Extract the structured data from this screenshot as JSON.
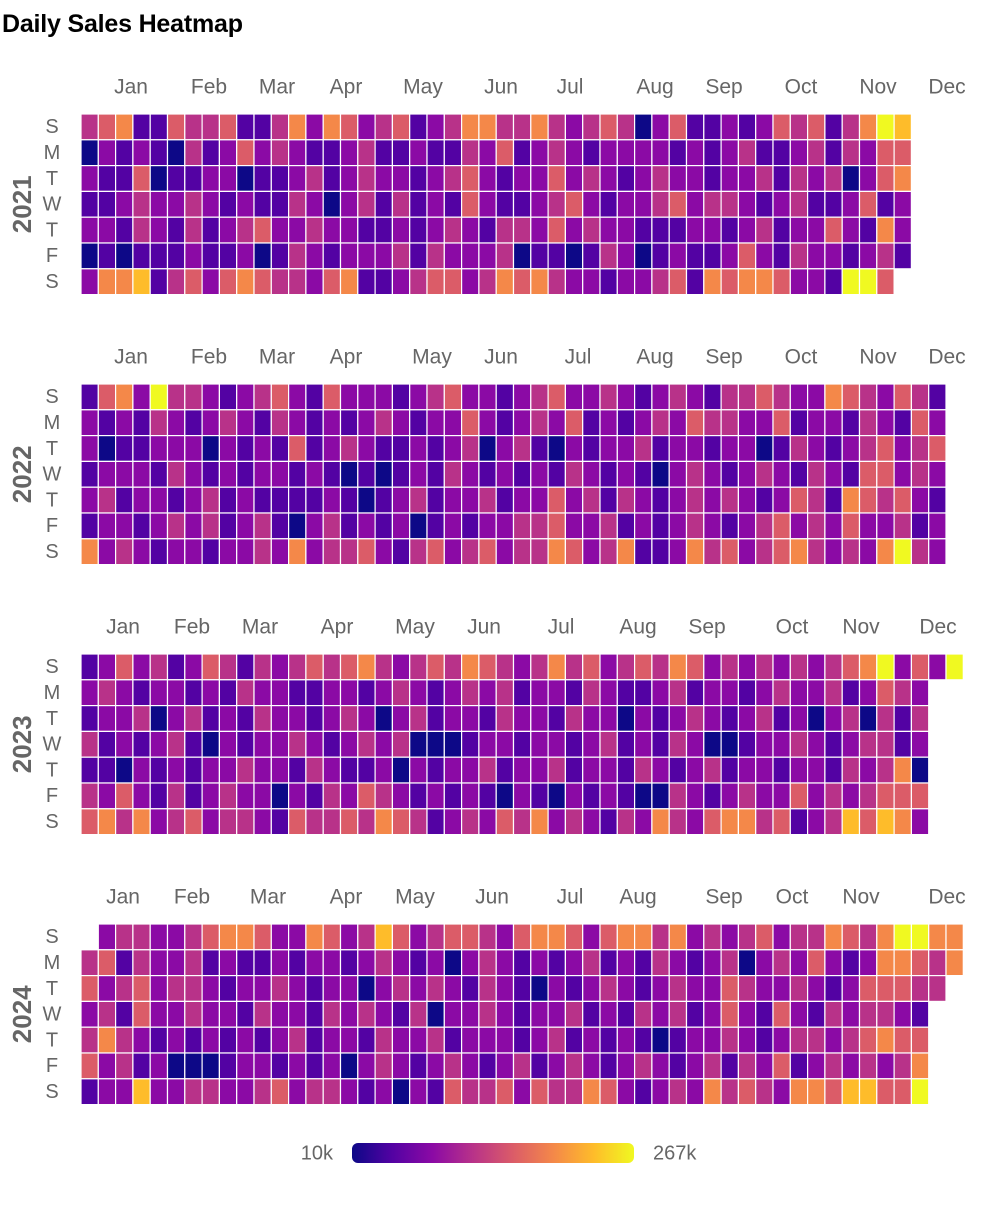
{
  "chart_data": {
    "type": "heatmap",
    "title": "Daily Sales Heatmap",
    "subtype": "calendar",
    "years": [
      2021,
      2022,
      2023,
      2024
    ],
    "months": [
      "Jan",
      "Feb",
      "Mar",
      "Apr",
      "May",
      "Jun",
      "Jul",
      "Aug",
      "Sep",
      "Oct",
      "Nov",
      "Dec"
    ],
    "weekday_labels": [
      "S",
      "M",
      "T",
      "W",
      "T",
      "F",
      "S"
    ],
    "colorscale": "plasma",
    "colorscale_stops": [
      "#0d0887",
      "#5302a3",
      "#8b0aa5",
      "#b83289",
      "#db5c68",
      "#f48849",
      "#febc2a",
      "#f0f921"
    ],
    "value_range": [
      10000,
      267000
    ],
    "legend": {
      "min_label": "10k",
      "max_label": "267k",
      "position": "bottom-center"
    },
    "daily_values_2023_december_weekly_sundays": [],
    "yearly_level_grids": {
      "2021": [
        [
          4,
          5,
          6,
          2,
          2,
          5,
          4,
          4,
          5,
          2,
          2,
          4,
          6,
          3,
          6,
          5,
          3,
          4,
          5,
          2,
          3,
          4,
          6,
          6,
          4,
          4,
          6,
          4,
          3,
          4,
          5,
          4,
          1,
          3,
          5,
          2,
          2,
          3,
          2,
          3,
          5,
          4,
          5,
          2,
          4,
          6,
          8,
          7
        ],
        [
          1,
          3,
          2,
          3,
          2,
          1,
          4,
          2,
          3,
          5,
          3,
          4,
          3,
          2,
          2,
          3,
          4,
          2,
          2,
          3,
          2,
          2,
          4,
          3,
          5,
          2,
          3,
          4,
          3,
          2,
          3,
          3,
          3,
          3,
          2,
          3,
          2,
          3,
          4,
          2,
          2,
          3,
          4,
          2,
          4,
          3,
          5,
          5
        ],
        [
          3,
          2,
          2,
          5,
          1,
          2,
          2,
          3,
          3,
          1,
          2,
          2,
          3,
          4,
          2,
          3,
          4,
          3,
          3,
          2,
          3,
          4,
          5,
          3,
          2,
          3,
          3,
          5,
          3,
          4,
          3,
          2,
          3,
          4,
          3,
          3,
          2,
          3,
          3,
          4,
          2,
          4,
          3,
          4,
          1,
          3,
          5,
          6
        ],
        [
          2,
          2,
          3,
          4,
          3,
          3,
          4,
          3,
          2,
          3,
          2,
          2,
          4,
          3,
          1,
          3,
          4,
          2,
          4,
          2,
          3,
          2,
          5,
          3,
          2,
          2,
          3,
          4,
          5,
          3,
          2,
          3,
          3,
          4,
          5,
          3,
          4,
          4,
          3,
          2,
          3,
          4,
          2,
          2,
          3,
          5,
          2,
          3
        ],
        [
          3,
          3,
          2,
          4,
          3,
          2,
          4,
          2,
          3,
          4,
          5,
          3,
          3,
          4,
          3,
          3,
          2,
          2,
          3,
          2,
          3,
          4,
          3,
          2,
          4,
          4,
          3,
          5,
          3,
          4,
          3,
          3,
          2,
          2,
          2,
          3,
          3,
          2,
          3,
          4,
          2,
          3,
          3,
          5,
          3,
          2,
          6,
          3
        ],
        [
          1,
          2,
          1,
          2,
          2,
          2,
          3,
          2,
          2,
          3,
          1,
          2,
          4,
          3,
          2,
          3,
          3,
          3,
          4,
          2,
          4,
          3,
          3,
          3,
          4,
          1,
          2,
          2,
          1,
          2,
          4,
          3,
          1,
          2,
          3,
          2,
          2,
          3,
          5,
          3,
          2,
          4,
          3,
          3,
          2,
          3,
          4,
          2
        ],
        [
          3,
          6,
          6,
          7,
          2,
          4,
          5,
          3,
          5,
          6,
          5,
          4,
          4,
          3,
          5,
          6,
          2,
          2,
          3,
          4,
          5,
          5,
          3,
          4,
          6,
          5,
          6,
          4,
          3,
          3,
          2,
          3,
          3,
          4,
          5,
          2,
          6,
          5,
          6,
          6,
          5,
          3,
          3,
          2,
          8,
          8,
          5,
          0
        ]
      ],
      "2022": [
        [
          2,
          5,
          6,
          3,
          8,
          4,
          4,
          3,
          2,
          3,
          4,
          5,
          3,
          2,
          5,
          3,
          3,
          3,
          2,
          3,
          4,
          5,
          3,
          3,
          2,
          3,
          4,
          5,
          3,
          3,
          4,
          3,
          2,
          3,
          4,
          3,
          2,
          4,
          4,
          5,
          4,
          3,
          3,
          6,
          5,
          4,
          3,
          5,
          4,
          2,
          0
        ],
        [
          3,
          2,
          3,
          2,
          4,
          3,
          2,
          3,
          4,
          3,
          2,
          4,
          3,
          2,
          3,
          2,
          3,
          4,
          3,
          2,
          3,
          3,
          5,
          3,
          2,
          3,
          4,
          3,
          5,
          2,
          3,
          2,
          3,
          4,
          3,
          5,
          4,
          4,
          3,
          3,
          5,
          2,
          3,
          3,
          2,
          4,
          3,
          2,
          5,
          3,
          0
        ],
        [
          3,
          1,
          2,
          2,
          3,
          3,
          3,
          1,
          3,
          2,
          3,
          2,
          5,
          2,
          3,
          4,
          3,
          2,
          2,
          3,
          2,
          3,
          4,
          1,
          3,
          4,
          2,
          1,
          3,
          2,
          3,
          3,
          4,
          2,
          3,
          3,
          2,
          3,
          3,
          1,
          2,
          4,
          3,
          2,
          3,
          4,
          5,
          3,
          4,
          5,
          0
        ],
        [
          2,
          3,
          3,
          3,
          2,
          4,
          3,
          2,
          3,
          2,
          3,
          3,
          2,
          3,
          2,
          1,
          2,
          1,
          2,
          3,
          2,
          4,
          3,
          2,
          3,
          2,
          3,
          2,
          4,
          3,
          2,
          3,
          2,
          1,
          3,
          4,
          3,
          2,
          3,
          4,
          3,
          2,
          4,
          3,
          2,
          5,
          5,
          3,
          4,
          3,
          0
        ],
        [
          3,
          4,
          2,
          3,
          3,
          2,
          3,
          4,
          2,
          3,
          2,
          2,
          2,
          2,
          3,
          2,
          1,
          2,
          3,
          4,
          2,
          3,
          3,
          4,
          2,
          3,
          3,
          5,
          3,
          4,
          2,
          4,
          3,
          2,
          3,
          4,
          3,
          4,
          3,
          2,
          3,
          5,
          4,
          2,
          6,
          5,
          4,
          5,
          3,
          2,
          0
        ],
        [
          2,
          3,
          3,
          2,
          3,
          4,
          3,
          4,
          2,
          3,
          4,
          2,
          1,
          3,
          4,
          2,
          3,
          2,
          3,
          1,
          2,
          3,
          2,
          3,
          3,
          4,
          4,
          5,
          3,
          3,
          4,
          2,
          3,
          2,
          3,
          4,
          3,
          2,
          3,
          4,
          5,
          3,
          4,
          3,
          5,
          3,
          3,
          4,
          2,
          3,
          0
        ],
        [
          6,
          3,
          4,
          3,
          2,
          3,
          3,
          2,
          3,
          3,
          4,
          3,
          6,
          3,
          4,
          4,
          5,
          3,
          2,
          4,
          5,
          3,
          4,
          5,
          3,
          4,
          4,
          6,
          5,
          3,
          4,
          6,
          2,
          2,
          3,
          6,
          4,
          5,
          3,
          4,
          5,
          6,
          4,
          3,
          4,
          3,
          6,
          8,
          4,
          3,
          0
        ]
      ],
      "2023": [
        [
          2,
          3,
          5,
          3,
          4,
          2,
          3,
          5,
          4,
          2,
          4,
          3,
          4,
          5,
          4,
          5,
          6,
          4,
          3,
          4,
          5,
          4,
          6,
          5,
          4,
          3,
          4,
          6,
          4,
          5,
          3,
          4,
          5,
          4,
          6,
          5,
          3,
          4,
          3,
          4,
          3,
          4,
          3,
          4,
          5,
          6,
          8,
          3,
          5,
          3,
          8
        ],
        [
          3,
          4,
          3,
          2,
          3,
          3,
          2,
          3,
          2,
          4,
          3,
          3,
          2,
          2,
          3,
          3,
          2,
          3,
          4,
          3,
          2,
          3,
          4,
          3,
          4,
          2,
          3,
          3,
          2,
          4,
          3,
          2,
          2,
          3,
          4,
          2,
          3,
          3,
          2,
          3,
          4,
          3,
          3,
          4,
          2,
          3,
          5,
          4,
          3,
          0,
          0
        ],
        [
          2,
          3,
          3,
          4,
          1,
          3,
          4,
          2,
          3,
          2,
          4,
          3,
          3,
          2,
          3,
          4,
          3,
          1,
          3,
          4,
          2,
          3,
          3,
          2,
          4,
          3,
          3,
          2,
          4,
          3,
          3,
          1,
          3,
          2,
          3,
          4,
          3,
          2,
          3,
          4,
          2,
          3,
          1,
          3,
          4,
          1,
          4,
          2,
          4,
          0,
          0
        ],
        [
          4,
          2,
          3,
          2,
          3,
          4,
          2,
          1,
          3,
          2,
          3,
          3,
          4,
          3,
          2,
          3,
          4,
          3,
          4,
          1,
          1,
          1,
          2,
          3,
          3,
          2,
          3,
          3,
          2,
          3,
          4,
          2,
          3,
          2,
          4,
          3,
          1,
          1,
          2,
          3,
          3,
          4,
          3,
          2,
          3,
          4,
          4,
          2,
          3,
          0,
          0
        ],
        [
          2,
          2,
          1,
          3,
          2,
          3,
          2,
          3,
          3,
          4,
          3,
          3,
          2,
          4,
          3,
          2,
          2,
          3,
          1,
          3,
          2,
          3,
          3,
          4,
          2,
          3,
          3,
          4,
          2,
          3,
          3,
          2,
          4,
          3,
          2,
          3,
          4,
          2,
          3,
          3,
          2,
          3,
          3,
          2,
          4,
          3,
          4,
          6,
          1,
          0,
          0
        ],
        [
          4,
          3,
          5,
          3,
          2,
          4,
          2,
          3,
          4,
          3,
          3,
          1,
          3,
          2,
          4,
          3,
          5,
          4,
          3,
          2,
          3,
          2,
          3,
          2,
          1,
          3,
          2,
          1,
          3,
          2,
          3,
          2,
          1,
          1,
          4,
          3,
          2,
          3,
          4,
          3,
          3,
          5,
          3,
          4,
          3,
          4,
          5,
          5,
          5,
          0,
          0
        ],
        [
          5,
          6,
          4,
          6,
          3,
          4,
          5,
          3,
          4,
          4,
          3,
          2,
          5,
          4,
          4,
          5,
          4,
          6,
          5,
          4,
          2,
          3,
          4,
          3,
          5,
          4,
          6,
          3,
          4,
          3,
          2,
          4,
          3,
          6,
          4,
          3,
          5,
          6,
          6,
          4,
          5,
          2,
          3,
          4,
          7,
          5,
          7,
          6,
          3,
          0,
          0
        ]
      ],
      "2024": [
        [
          0,
          3,
          4,
          4,
          3,
          3,
          4,
          5,
          6,
          6,
          5,
          3,
          3,
          6,
          5,
          3,
          4,
          7,
          5,
          3,
          4,
          5,
          5,
          4,
          3,
          5,
          6,
          6,
          5,
          3,
          5,
          6,
          6,
          4,
          6,
          3,
          4,
          3,
          4,
          5,
          3,
          4,
          4,
          6,
          5,
          4,
          6,
          8,
          8,
          6,
          6
        ],
        [
          4,
          5,
          2,
          4,
          3,
          3,
          4,
          2,
          3,
          2,
          2,
          3,
          2,
          3,
          3,
          2,
          3,
          4,
          3,
          2,
          3,
          1,
          3,
          4,
          3,
          2,
          3,
          2,
          3,
          4,
          2,
          3,
          2,
          4,
          3,
          2,
          3,
          4,
          1,
          3,
          4,
          3,
          5,
          3,
          2,
          3,
          6,
          6,
          5,
          4,
          6
        ],
        [
          5,
          3,
          4,
          5,
          3,
          4,
          4,
          3,
          2,
          3,
          3,
          4,
          3,
          2,
          3,
          3,
          1,
          3,
          4,
          3,
          4,
          3,
          2,
          4,
          3,
          2,
          1,
          3,
          2,
          3,
          4,
          3,
          2,
          3,
          4,
          3,
          3,
          5,
          4,
          3,
          3,
          4,
          3,
          2,
          3,
          5,
          5,
          5,
          4,
          4,
          0
        ],
        [
          3,
          4,
          2,
          5,
          3,
          3,
          4,
          3,
          3,
          2,
          4,
          3,
          3,
          2,
          4,
          3,
          4,
          3,
          2,
          4,
          1,
          3,
          3,
          4,
          3,
          2,
          3,
          3,
          4,
          2,
          3,
          2,
          4,
          3,
          4,
          2,
          3,
          5,
          3,
          2,
          5,
          3,
          2,
          4,
          3,
          4,
          4,
          3,
          2,
          0,
          0
        ],
        [
          4,
          6,
          4,
          3,
          2,
          3,
          2,
          3,
          2,
          3,
          2,
          3,
          4,
          2,
          3,
          3,
          2,
          4,
          3,
          3,
          4,
          2,
          3,
          3,
          3,
          2,
          3,
          4,
          2,
          3,
          2,
          3,
          2,
          1,
          2,
          3,
          3,
          4,
          3,
          2,
          3,
          4,
          4,
          3,
          4,
          5,
          6,
          5,
          5,
          0,
          0
        ],
        [
          5,
          3,
          4,
          2,
          3,
          1,
          1,
          1,
          2,
          3,
          3,
          2,
          3,
          2,
          3,
          1,
          3,
          4,
          3,
          2,
          3,
          4,
          3,
          2,
          3,
          4,
          2,
          3,
          4,
          3,
          2,
          3,
          4,
          3,
          2,
          3,
          4,
          2,
          4,
          3,
          5,
          2,
          3,
          4,
          3,
          4,
          3,
          4,
          6,
          0,
          0
        ],
        [
          2,
          3,
          3,
          7,
          3,
          3,
          4,
          4,
          3,
          3,
          4,
          5,
          3,
          4,
          4,
          3,
          2,
          3,
          1,
          3,
          2,
          5,
          4,
          4,
          5,
          3,
          5,
          4,
          4,
          6,
          5,
          3,
          2,
          3,
          4,
          3,
          6,
          4,
          5,
          4,
          3,
          6,
          6,
          5,
          7,
          7,
          5,
          5,
          8,
          0,
          0
        ]
      ]
    }
  }
}
